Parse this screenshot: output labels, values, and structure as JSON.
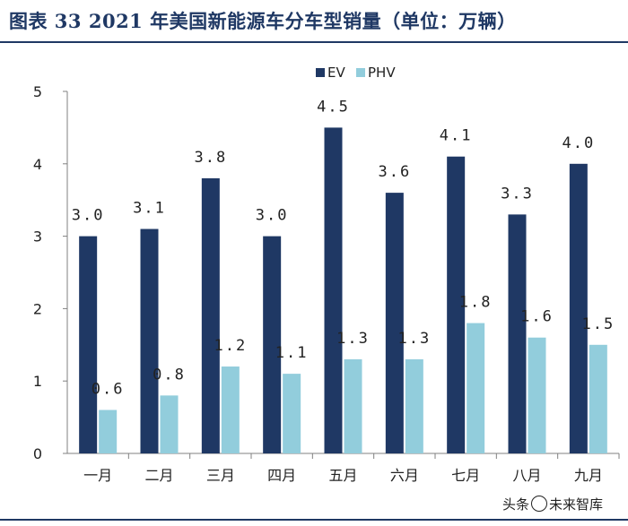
{
  "header": {
    "title": "图表 33 2021 年美国新能源车分车型销量（单位：万辆）"
  },
  "chart_data": {
    "type": "bar",
    "categories": [
      "一月",
      "二月",
      "三月",
      "四月",
      "五月",
      "六月",
      "七月",
      "八月",
      "九月"
    ],
    "series": [
      {
        "name": "EV",
        "values": [
          3.0,
          3.1,
          3.8,
          3.0,
          4.5,
          3.6,
          4.1,
          3.3,
          4.0
        ],
        "labels": [
          "3.0",
          "3.1",
          "3.8",
          "3.0",
          "4.5",
          "3.6",
          "4.1",
          "3.3",
          "4.0"
        ]
      },
      {
        "name": "PHV",
        "values": [
          0.6,
          0.8,
          1.2,
          1.1,
          1.3,
          1.3,
          1.8,
          1.6,
          1.5
        ],
        "labels": [
          "0.6",
          "0.8",
          "1.2",
          "1.1",
          "1.3",
          "1.3",
          "1.8",
          "1.6",
          "1.5"
        ]
      }
    ],
    "ylim": [
      0,
      5
    ],
    "yticks": [
      "0",
      "1",
      "2",
      "3",
      "4",
      "5"
    ],
    "colors": {
      "EV": "#1f3864",
      "PHV": "#92cddc"
    },
    "legend": "top-center"
  },
  "footer": {
    "watermark_prefix": "头条",
    "watermark_suffix": "未来智库"
  }
}
